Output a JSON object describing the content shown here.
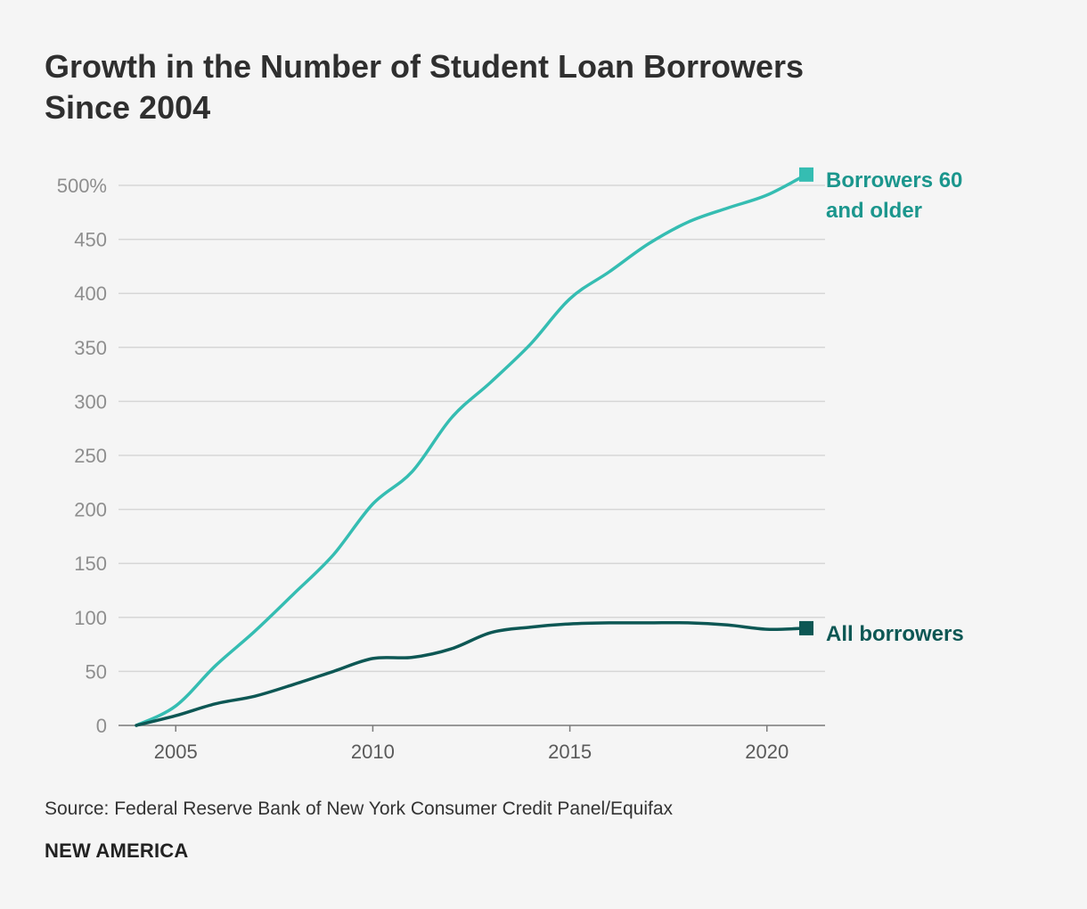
{
  "colors": {
    "background": "#f5f5f5",
    "older": "#35bdb2",
    "older_label": "#1b968d",
    "all": "#0d5754",
    "grid": "#d6d6d6",
    "axis": "#7a7a7a"
  },
  "chart_data": {
    "type": "line",
    "title": "Growth in the Number of Student Loan Borrowers Since 2004",
    "title_lines": [
      "Growth in the Number of Student Loan Borrowers",
      "Since 2004"
    ],
    "xlabel": "",
    "ylabel": "",
    "xlim": [
      2004,
      2021
    ],
    "ylim": [
      0,
      500
    ],
    "x_ticks": [
      2005,
      2010,
      2015,
      2020
    ],
    "y_ticks": [
      0,
      50,
      100,
      150,
      200,
      250,
      300,
      350,
      400,
      450,
      500
    ],
    "y_tick_labels": [
      "0",
      "50",
      "100",
      "150",
      "200",
      "250",
      "300",
      "350",
      "400",
      "450",
      "500%"
    ],
    "grid": true,
    "legend": "direct labels at line ends",
    "x": [
      2004,
      2005,
      2006,
      2007,
      2008,
      2009,
      2010,
      2011,
      2012,
      2013,
      2014,
      2015,
      2016,
      2017,
      2018,
      2019,
      2020,
      2021
    ],
    "series": [
      {
        "name": "Borrowers 60 and older",
        "label_lines": [
          "Borrowers 60",
          "and older"
        ],
        "values": [
          0,
          18,
          55,
          87,
          122,
          158,
          205,
          235,
          285,
          318,
          353,
          395,
          420,
          446,
          466,
          479,
          491,
          510
        ]
      },
      {
        "name": "All borrowers",
        "label_lines": [
          "All borrowers"
        ],
        "values": [
          0,
          9,
          20,
          27,
          38,
          50,
          62,
          63,
          71,
          86,
          91,
          94,
          95,
          95,
          95,
          93,
          89,
          90
        ]
      }
    ]
  },
  "footer": {
    "source": "Source: Federal Reserve Bank of New York Consumer Credit Panel/Equifax",
    "brand": "NEW AMERICA"
  }
}
